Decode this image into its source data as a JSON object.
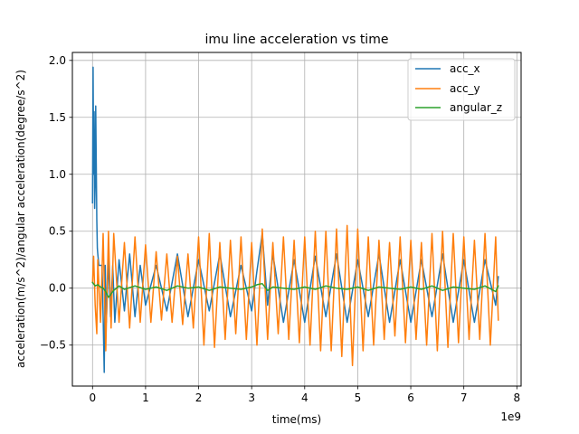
{
  "chart_data": {
    "type": "line",
    "title": "imu line acceleration vs time",
    "xlabel": "time(ms)",
    "ylabel": "acceleration(m/s^2)/angular acceleration(degree/s^2)",
    "x_offset_label": "1e9",
    "xlim": [
      -0.38,
      8.08
    ],
    "ylim": [
      -0.86,
      2.07
    ],
    "x_ticks": [
      0,
      1,
      2,
      3,
      4,
      5,
      6,
      7,
      8
    ],
    "y_ticks": [
      -0.5,
      0.0,
      0.5,
      1.0,
      1.5,
      2.0
    ],
    "x_tick_labels": [
      "0",
      "1",
      "2",
      "3",
      "4",
      "5",
      "6",
      "7",
      "8"
    ],
    "y_tick_labels": [
      "−0.5",
      "0.0",
      "0.5",
      "1.0",
      "1.5",
      "2.0"
    ],
    "grid": true,
    "legend_position": "top-right",
    "series": [
      {
        "name": "acc_x",
        "color": "#1f77b4",
        "x": [
          0.0,
          0.01,
          0.02,
          0.03,
          0.04,
          0.05,
          0.06,
          0.07,
          0.08,
          0.09,
          0.1,
          0.11,
          0.12,
          0.13,
          0.15,
          0.18,
          0.2,
          0.22,
          0.24,
          0.26,
          0.3,
          0.34,
          0.38,
          0.42,
          0.5,
          0.6,
          0.7,
          0.8,
          0.9,
          1.0,
          1.2,
          1.4,
          1.6,
          1.8,
          2.0,
          2.2,
          2.4,
          2.6,
          2.8,
          3.0,
          3.1,
          3.2,
          3.3,
          3.4,
          3.6,
          3.8,
          4.0,
          4.2,
          4.4,
          4.6,
          4.8,
          5.0,
          5.2,
          5.4,
          5.6,
          5.8,
          6.0,
          6.2,
          6.4,
          6.6,
          6.8,
          7.0,
          7.2,
          7.4,
          7.6,
          7.65
        ],
        "y": [
          0.75,
          1.94,
          1.0,
          1.55,
          0.7,
          0.9,
          1.6,
          1.1,
          0.6,
          0.35,
          0.3,
          0.25,
          0.2,
          0.2,
          0.2,
          0.2,
          -0.25,
          -0.74,
          0.2,
          -0.3,
          0.25,
          -0.25,
          0.2,
          -0.3,
          0.25,
          -0.2,
          0.3,
          -0.25,
          0.2,
          -0.15,
          0.2,
          -0.2,
          0.3,
          -0.25,
          0.25,
          -0.2,
          0.3,
          -0.25,
          0.2,
          -0.2,
          0.15,
          0.48,
          -0.15,
          0.3,
          -0.3,
          0.25,
          -0.3,
          0.28,
          -0.25,
          0.3,
          -0.3,
          0.25,
          -0.25,
          0.3,
          -0.3,
          0.25,
          -0.3,
          0.25,
          -0.25,
          0.3,
          -0.3,
          0.25,
          -0.3,
          0.25,
          -0.15,
          0.1
        ]
      },
      {
        "name": "acc_y",
        "color": "#ff7f0e",
        "x": [
          0.0,
          0.02,
          0.05,
          0.08,
          0.1,
          0.15,
          0.2,
          0.25,
          0.3,
          0.35,
          0.4,
          0.5,
          0.6,
          0.7,
          0.8,
          0.9,
          1.0,
          1.1,
          1.2,
          1.3,
          1.4,
          1.5,
          1.6,
          1.7,
          1.8,
          1.9,
          2.0,
          2.1,
          2.2,
          2.3,
          2.4,
          2.5,
          2.6,
          2.7,
          2.8,
          2.9,
          3.0,
          3.1,
          3.2,
          3.3,
          3.4,
          3.5,
          3.6,
          3.7,
          3.8,
          3.9,
          4.0,
          4.1,
          4.2,
          4.3,
          4.4,
          4.5,
          4.6,
          4.7,
          4.8,
          4.9,
          5.0,
          5.1,
          5.2,
          5.3,
          5.4,
          5.5,
          5.6,
          5.7,
          5.8,
          5.9,
          6.0,
          6.1,
          6.2,
          6.3,
          6.4,
          6.5,
          6.6,
          6.7,
          6.8,
          6.9,
          7.0,
          7.1,
          7.2,
          7.3,
          7.4,
          7.5,
          7.6,
          7.65
        ],
        "y": [
          0.05,
          0.28,
          -0.15,
          -0.4,
          0.25,
          -0.3,
          0.48,
          -0.55,
          0.5,
          -0.35,
          0.48,
          -0.3,
          0.4,
          -0.35,
          0.45,
          -0.3,
          0.38,
          -0.3,
          0.32,
          -0.28,
          0.3,
          -0.3,
          0.28,
          -0.32,
          0.3,
          -0.35,
          0.45,
          -0.5,
          0.48,
          -0.52,
          0.4,
          -0.45,
          0.42,
          -0.4,
          0.45,
          -0.45,
          0.4,
          -0.5,
          0.52,
          -0.45,
          0.4,
          -0.4,
          0.45,
          -0.45,
          0.42,
          -0.48,
          0.45,
          -0.5,
          0.5,
          -0.55,
          0.5,
          -0.55,
          0.52,
          -0.6,
          0.55,
          -0.68,
          0.52,
          -0.55,
          0.45,
          -0.5,
          0.42,
          -0.45,
          0.4,
          -0.42,
          0.45,
          -0.48,
          0.42,
          -0.45,
          0.4,
          -0.5,
          0.48,
          -0.55,
          0.5,
          -0.52,
          0.48,
          -0.48,
          0.45,
          -0.45,
          0.42,
          -0.45,
          0.48,
          -0.5,
          0.45,
          -0.28
        ]
      },
      {
        "name": "angular_z",
        "color": "#2ca02c",
        "x": [
          0.0,
          0.05,
          0.1,
          0.15,
          0.2,
          0.25,
          0.3,
          0.4,
          0.5,
          0.6,
          0.8,
          1.0,
          1.2,
          1.4,
          1.6,
          1.8,
          2.0,
          2.2,
          2.4,
          2.6,
          2.8,
          3.0,
          3.1,
          3.2,
          3.3,
          3.4,
          3.6,
          3.8,
          4.0,
          4.2,
          4.4,
          4.6,
          4.8,
          5.0,
          5.2,
          5.4,
          5.6,
          5.8,
          6.0,
          6.2,
          6.4,
          6.6,
          6.8,
          7.0,
          7.2,
          7.4,
          7.6,
          7.65
        ],
        "y": [
          0.05,
          0.02,
          0.03,
          0.01,
          0.0,
          -0.03,
          -0.08,
          -0.02,
          0.02,
          -0.01,
          0.02,
          -0.01,
          0.01,
          -0.02,
          0.02,
          0.0,
          0.01,
          -0.02,
          0.01,
          0.0,
          -0.01,
          0.01,
          0.03,
          0.04,
          -0.02,
          0.01,
          0.0,
          -0.01,
          0.01,
          -0.01,
          0.02,
          0.0,
          -0.01,
          0.01,
          -0.02,
          0.01,
          0.0,
          -0.01,
          0.01,
          -0.01,
          0.02,
          -0.02,
          0.01,
          0.0,
          -0.01,
          0.02,
          -0.03,
          0.02
        ]
      }
    ]
  }
}
